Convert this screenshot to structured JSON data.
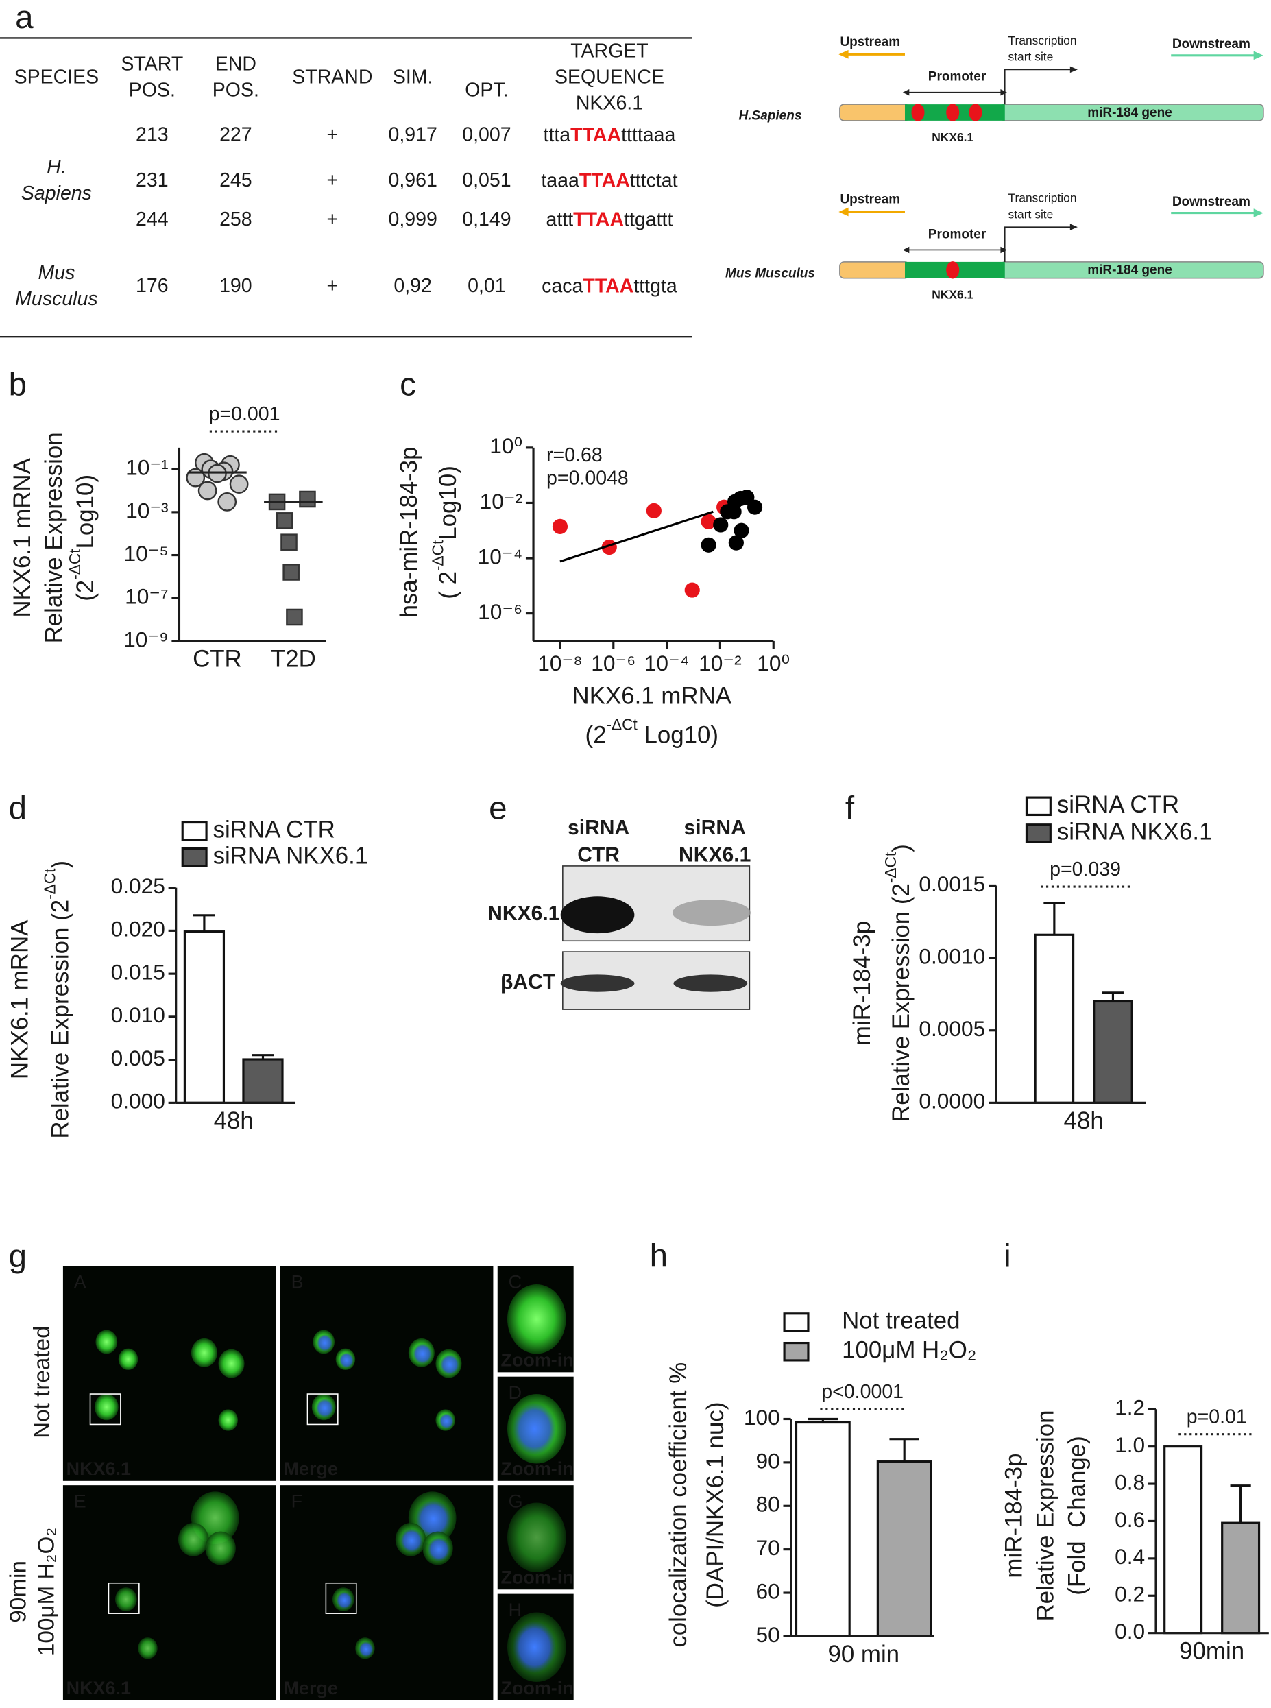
{
  "panels": [
    "a",
    "b",
    "c",
    "d",
    "e",
    "f",
    "g",
    "h",
    "i"
  ],
  "table": {
    "headers": [
      [
        "SPECIES"
      ],
      [
        "START",
        "POS."
      ],
      [
        "END",
        "POS."
      ],
      [
        "STRAND"
      ],
      [
        "SIM."
      ],
      [
        "OPT."
      ],
      [
        "TARGET",
        "SEQUENCE",
        "NKX6.1"
      ]
    ],
    "groups": [
      {
        "species": [
          "H.",
          "Sapiens"
        ],
        "rows": [
          [
            213,
            227,
            "+",
            "0,917",
            "0,007",
            [
              "ttta",
              "TTAA",
              "ttttaaa"
            ]
          ],
          [
            231,
            245,
            "+",
            "0,961",
            "0,051",
            [
              "taaa",
              "TTAA",
              "tttctat"
            ]
          ],
          [
            244,
            258,
            "+",
            "0,999",
            "0,149",
            [
              "attt",
              "TTAA",
              "ttgattt"
            ]
          ]
        ]
      },
      {
        "species": [
          "Mus",
          "Musculus"
        ],
        "rows": [
          [
            176,
            190,
            "+",
            "0,92",
            "0,01",
            [
              "caca",
              "TTAA",
              "tttgta"
            ]
          ]
        ]
      }
    ]
  },
  "promoter_diagrams": [
    {
      "species": "H.Sapiens",
      "upstream": "Upstream",
      "downstream": "Downstream",
      "tss": [
        "Transcription",
        "start site"
      ],
      "promoter": "Promoter",
      "gene": "miR-184 gene",
      "site": "NKX6.1"
    },
    {
      "species": "Mus Musculus",
      "upstream": "Upstream",
      "downstream": "Downstream",
      "tss": [
        "Transcription",
        "start site"
      ],
      "promoter": "Promoter",
      "gene": "miR-184 gene",
      "site": "NKX6.1"
    }
  ],
  "blot": {
    "lanes": [
      [
        "siRNA",
        "CTR"
      ],
      [
        "siRNA",
        "NKX6.1"
      ]
    ],
    "rows": [
      "NKX6.1",
      "βACT"
    ]
  },
  "micrographs": {
    "row_labels": [
      [
        "Not treated"
      ],
      [
        "90min",
        "100μM H₂O₂"
      ]
    ],
    "panels": [
      {
        "letter": "A",
        "caption": "NKX6.1"
      },
      {
        "letter": "B",
        "caption": "Merge"
      },
      {
        "letter": "C",
        "caption": "Zoom-in"
      },
      {
        "letter": "D",
        "caption": "Zoom-in"
      },
      {
        "letter": "E",
        "caption": "NKX6.1"
      },
      {
        "letter": "F",
        "caption": "Merge"
      },
      {
        "letter": "G",
        "caption": "Zoom-in"
      },
      {
        "letter": "H",
        "caption": "Zoom-in"
      }
    ]
  },
  "chart_data": [
    {
      "type": "dotplot",
      "categories": [
        "CTR",
        "T2D"
      ],
      "values": [
        [
          0.2,
          0.16,
          0.1,
          0.08,
          0.063,
          0.04,
          0.02,
          0.01,
          0.003
        ],
        [
          0.003,
          0.004,
          0.0004,
          4e-05,
          1.6e-06,
          1.3e-08
        ]
      ],
      "medians": [
        0.07,
        0.003
      ],
      "colors": [
        "#c8c8c8",
        "#595959"
      ],
      "markers": [
        "circle",
        "square"
      ],
      "log": true,
      "ylim": [
        1e-09,
        1
      ],
      "yticks": [
        {
          "value": 0.1,
          "label": "10⁻¹"
        },
        {
          "value": 0.001,
          "label": "10⁻³"
        },
        {
          "value": 1e-05,
          "label": "10⁻⁵"
        },
        {
          "value": 1e-07,
          "label": "10⁻⁷"
        },
        {
          "value": 1e-09,
          "label": "10⁻⁹"
        }
      ],
      "ylabel": [
        [
          "NKX6.1 mRNA"
        ],
        [
          "Relative Expression"
        ],
        [
          "(2",
          {
            "sup": "-ΔCt"
          },
          "Log10)"
        ]
      ],
      "annotation": "p=0.001"
    },
    {
      "type": "scatter",
      "log": true,
      "xlim": [
        1e-09,
        1
      ],
      "ylim": [
        1e-07,
        1
      ],
      "xticks": [
        {
          "value": 1e-08,
          "label": "10⁻⁸"
        },
        {
          "value": 1e-06,
          "label": "10⁻⁶"
        },
        {
          "value": 0.0001,
          "label": "10⁻⁴"
        },
        {
          "value": 0.01,
          "label": "10⁻²"
        },
        {
          "value": 1,
          "label": "10⁰"
        }
      ],
      "yticks": [
        {
          "value": 1,
          "label": "10⁰"
        },
        {
          "value": 0.01,
          "label": "10⁻²"
        },
        {
          "value": 0.0001,
          "label": "10⁻⁴"
        },
        {
          "value": 1e-06,
          "label": "10⁻⁶"
        }
      ],
      "series": [
        {
          "color": "#e8141b",
          "x": [
            1e-08,
            7e-07,
            3.3e-05,
            0.0037,
            0.0009,
            0.014
          ],
          "y": [
            0.0014,
            0.00025,
            0.0052,
            0.0021,
            7e-06,
            0.007
          ]
        },
        {
          "color": "#000000",
          "x": [
            0.0037,
            0.0105,
            0.019,
            0.036,
            0.058,
            0.1,
            0.2,
            0.04,
            0.063,
            0.033
          ],
          "y": [
            0.0003,
            0.0016,
            0.0048,
            0.011,
            0.0145,
            0.016,
            0.007,
            0.00036,
            0.001,
            0.0048
          ]
        }
      ],
      "fit": {
        "color": "#000000",
        "x": [
          1e-08,
          0.0055
        ],
        "y": [
          7.6e-05,
          0.0048
        ]
      },
      "xlabel": [
        [
          "NKX6.1 mRNA"
        ],
        [
          "(2",
          {
            "sup": "-ΔCt"
          },
          " Log10)"
        ]
      ],
      "ylabel": [
        [
          "hsa-miR-184-3p"
        ],
        [
          "( 2",
          {
            "sup": "-ΔCt"
          },
          "Log10)"
        ]
      ],
      "annotations": [
        "r=0.68",
        "p=0.0048"
      ]
    },
    {
      "type": "bar",
      "categories": [
        "48h"
      ],
      "series": [
        {
          "name": "siRNA CTR",
          "color": "#ffffff",
          "values": [
            0.0199
          ],
          "errors": [
            0.0019
          ]
        },
        {
          "name": "siRNA NKX6.1",
          "color": "#5a5a5a",
          "values": [
            0.00505
          ],
          "errors": [
            0.0005
          ]
        }
      ],
      "ylim": [
        0,
        0.025
      ],
      "yticks": [
        {
          "value": 0,
          "label": "0.000"
        },
        0.005,
        {
          "value": 0.01,
          "label": "0.010"
        },
        0.015,
        {
          "value": 0.02,
          "label": "0.020"
        },
        0.025
      ],
      "ylabel": [
        [
          "NKX6.1 mRNA"
        ],
        [
          "Relative Expression (2",
          {
            "sup": "-ΔCt"
          },
          ")"
        ]
      ]
    },
    {
      "type": "bar",
      "categories": [
        "48h"
      ],
      "series": [
        {
          "name": "siRNA CTR",
          "color": "#ffffff",
          "values": [
            0.00116
          ],
          "errors": [
            0.00022
          ]
        },
        {
          "name": "siRNA NKX6.1",
          "color": "#5a5a5a",
          "values": [
            0.0007
          ],
          "errors": [
            6e-05
          ]
        }
      ],
      "ylim": [
        0,
        0.0015
      ],
      "yticks": [
        {
          "value": 0,
          "label": "0.0000"
        },
        0.0005,
        {
          "value": 0.001,
          "label": "0.0010"
        },
        0.0015
      ],
      "ylabel": [
        [
          "miR-184-3p"
        ],
        [
          "Relative Expression (2",
          {
            "sup": "-ΔCt"
          },
          ")"
        ]
      ],
      "annotation": "p=0.039"
    },
    {
      "type": "bar",
      "categories": [
        "90 min"
      ],
      "series": [
        {
          "name": "Not treated",
          "color": "#ffffff",
          "values": [
            99.2
          ],
          "errors": [
            0.8
          ]
        },
        {
          "name": "100μM H₂O₂",
          "color": "#a6a6a6",
          "values": [
            90.2
          ],
          "errors": [
            5.2
          ]
        }
      ],
      "ylim": [
        50,
        100
      ],
      "yticks": [
        50,
        60,
        70,
        80,
        90,
        100
      ],
      "ylabel": [
        [
          "colocalization coefficient %"
        ],
        [
          "(DAPI/NKX6.1 nuc)"
        ]
      ],
      "annotation": "p<0.0001"
    },
    {
      "type": "bar",
      "categories": [
        "90min"
      ],
      "series": [
        {
          "color": "#ffffff",
          "values": [
            1.0
          ],
          "errors": [
            null
          ]
        },
        {
          "color": "#a6a6a6",
          "values": [
            0.59
          ],
          "errors": [
            0.2
          ]
        }
      ],
      "ylim": [
        0,
        1.2
      ],
      "yticks": [
        {
          "value": 0,
          "label": "0.0"
        },
        0.2,
        0.4,
        0.6,
        0.8,
        {
          "value": 1,
          "label": "1.0"
        },
        1.2
      ],
      "ylabel": [
        [
          "miR-184-3p"
        ],
        [
          "Relative Expression"
        ],
        [
          "(Fold  Change)"
        ]
      ],
      "annotation": "p=0.01"
    }
  ]
}
